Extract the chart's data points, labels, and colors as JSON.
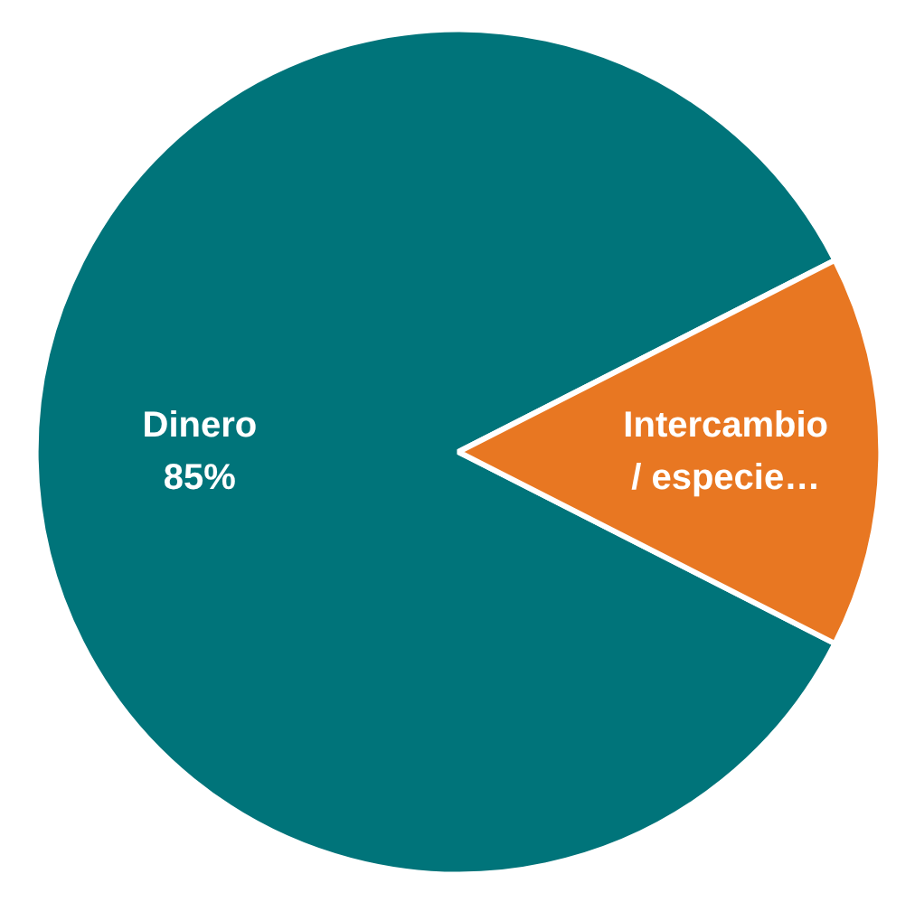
{
  "chart_data": {
    "type": "pie",
    "categories": [
      "Dinero",
      "Intercambio / especie…"
    ],
    "values": [
      85,
      15
    ],
    "colors": [
      "#00747a",
      "#e87722"
    ],
    "value_labels": [
      "85%",
      null
    ]
  }
}
